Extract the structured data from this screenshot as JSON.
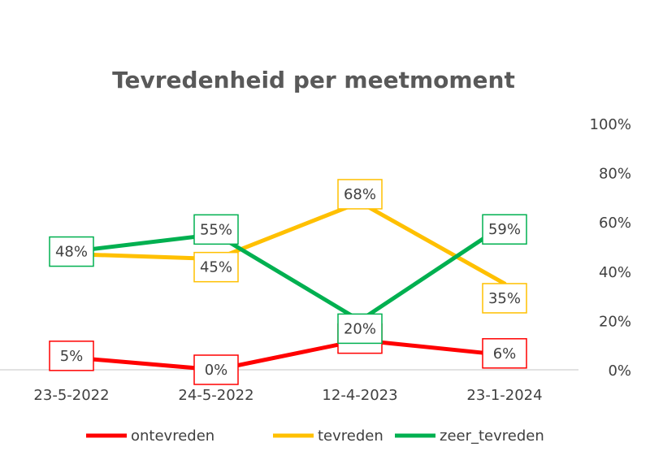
{
  "chart_data": {
    "type": "line",
    "title": "Tevredenheid per meetmoment",
    "categories": [
      "23-5-2022",
      "24-5-2022",
      "12-4-2023",
      "23-1-2024"
    ],
    "y_axis": {
      "position": "right",
      "min": 0,
      "max": 100,
      "ticks": [
        "0%",
        "20%",
        "40%",
        "60%",
        "80%",
        "100%"
      ],
      "tick_values": [
        0,
        20,
        40,
        60,
        80,
        100
      ]
    },
    "gridlines": false,
    "legend": {
      "placement": "bottom"
    },
    "series": [
      {
        "name": "ontevreden",
        "color": "#ff0000",
        "values": [
          5,
          0,
          12,
          6
        ],
        "labels": [
          "5%",
          "0%",
          "12%",
          "6%"
        ]
      },
      {
        "name": "tevreden",
        "color": "#ffc000",
        "values": [
          47,
          45,
          68,
          35
        ],
        "labels": [
          "",
          "45%",
          "68%",
          "35%"
        ]
      },
      {
        "name": "zeer_tevreden",
        "color": "#00b050",
        "values": [
          48,
          55,
          20,
          59
        ],
        "labels": [
          "48%",
          "55%",
          "20%",
          "59%"
        ]
      }
    ]
  }
}
